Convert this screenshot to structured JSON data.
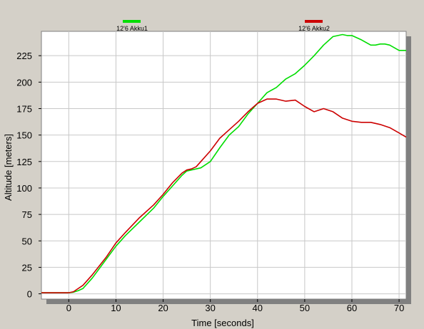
{
  "chart_data": {
    "type": "line",
    "title": "",
    "xlabel": "Time [seconds]",
    "ylabel": "Altitude [meters]",
    "xlim": [
      -5.8,
      71.5
    ],
    "ylim": [
      -5,
      248
    ],
    "xticks": [
      0,
      10,
      20,
      30,
      40,
      50,
      60,
      70
    ],
    "yticks": [
      0,
      25,
      50,
      75,
      100,
      125,
      150,
      175,
      200,
      225
    ],
    "grid": true,
    "legend_position": "top",
    "series": [
      {
        "name": "12'6 Akku1",
        "color": "#00dd00",
        "x": [
          -6,
          0,
          1,
          2,
          3,
          5,
          8,
          10,
          12,
          15,
          18,
          20,
          22,
          24,
          25,
          26,
          27,
          28,
          30,
          32,
          34,
          36,
          38,
          40,
          42,
          44,
          46,
          48,
          50,
          52,
          54,
          56,
          58,
          59,
          60,
          62,
          64,
          65,
          66,
          67,
          68,
          70,
          71.5
        ],
        "values": [
          1,
          1,
          1.5,
          3,
          5,
          15,
          33,
          45,
          55,
          68,
          81,
          92,
          102,
          112,
          116,
          117,
          118,
          119,
          125,
          138,
          150,
          158,
          170,
          180,
          190,
          195,
          203,
          208,
          216,
          225,
          235,
          243,
          245,
          244,
          244,
          240,
          235,
          235,
          236,
          236,
          235,
          230,
          230
        ]
      },
      {
        "name": "12'6 Akku2",
        "color": "#cc0000",
        "x": [
          -6,
          0,
          1,
          2,
          3,
          5,
          8,
          10,
          12,
          15,
          18,
          20,
          22,
          24,
          25,
          26,
          27,
          28,
          30,
          32,
          34,
          36,
          38,
          40,
          42,
          43,
          44,
          46,
          48,
          50,
          52,
          54,
          56,
          58,
          60,
          62,
          64,
          66,
          68,
          70,
          71.5
        ],
        "values": [
          1,
          1,
          2,
          5,
          8,
          18,
          35,
          48,
          58,
          72,
          84,
          94,
          105,
          114,
          117,
          118,
          120,
          125,
          135,
          147,
          155,
          163,
          172,
          180,
          184,
          184,
          184,
          182,
          183,
          177,
          172,
          175,
          172,
          166,
          163,
          162,
          162,
          160,
          157,
          152,
          148
        ]
      }
    ]
  }
}
